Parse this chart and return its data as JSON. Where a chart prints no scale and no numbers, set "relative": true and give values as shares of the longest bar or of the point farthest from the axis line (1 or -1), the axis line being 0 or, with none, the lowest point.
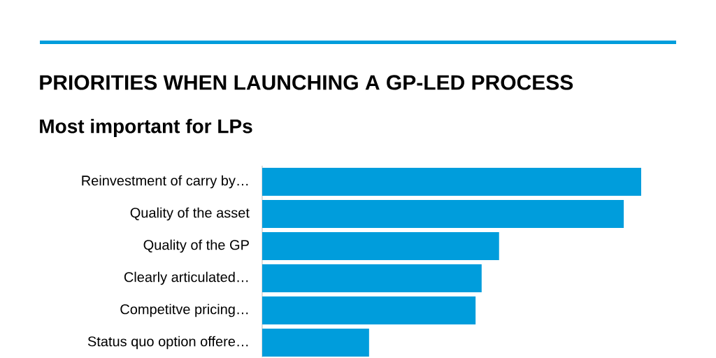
{
  "chart_data": {
    "type": "bar",
    "orientation": "horizontal",
    "relative": true,
    "title": "PRIORITIES WHEN LAUNCHING A GP-LED PROCESS",
    "subtitle": "Most important for LPs",
    "categories": [
      "Reinvestment of carry by…",
      "Quality of the asset",
      "Quality of the GP",
      "Clearly articulated…",
      "Competitve pricing…",
      "Status quo option offere…"
    ],
    "values": [
      1,
      0.954,
      0.625,
      0.579,
      0.563,
      0.282
    ],
    "color": "#009ddc"
  }
}
